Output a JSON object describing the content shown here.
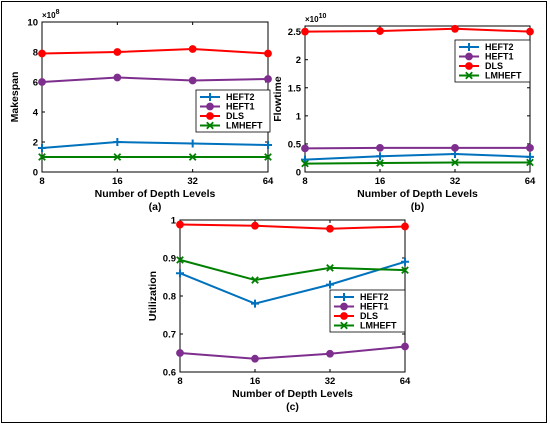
{
  "chart_data": [
    {
      "type": "line",
      "caption": "(a)",
      "xlabel": "Number of Depth Levels",
      "ylabel": "Makespan",
      "y_multiplier": "×10",
      "y_multiplier_exp": "8",
      "categories": [
        "8",
        "16",
        "32",
        "64"
      ],
      "ylim": [
        0,
        10
      ],
      "yticks": [
        0,
        2,
        4,
        6,
        8,
        10
      ],
      "legend_position": "center-right",
      "series": [
        {
          "name": "HEFT2",
          "color": "#0072BD",
          "marker": "plus",
          "values": [
            1.6,
            2.0,
            1.9,
            1.8
          ]
        },
        {
          "name": "HEFT1",
          "color": "#7E2F8E",
          "marker": "circle",
          "values": [
            6.0,
            6.3,
            6.1,
            6.2
          ]
        },
        {
          "name": "DLS",
          "color": "#FF0000",
          "marker": "circle",
          "values": [
            7.9,
            8.0,
            8.2,
            7.9
          ]
        },
        {
          "name": "LMHEFT",
          "color": "#008000",
          "marker": "cross",
          "values": [
            1.0,
            1.0,
            1.0,
            1.0
          ]
        }
      ]
    },
    {
      "type": "line",
      "caption": "(b)",
      "xlabel": "Number of Depth Levels",
      "ylabel": "Flowtime",
      "y_multiplier": "×10",
      "y_multiplier_exp": "10",
      "categories": [
        "8",
        "16",
        "32",
        "64"
      ],
      "ylim": [
        0,
        2.6
      ],
      "yticks": [
        0,
        0.5,
        1,
        1.5,
        2,
        2.5
      ],
      "ytick_labels": [
        "0",
        "0.5",
        "1",
        "1.5",
        "2",
        "2.5"
      ],
      "legend_position": "top-right",
      "series": [
        {
          "name": "HEFT2",
          "color": "#0072BD",
          "marker": "plus",
          "values": [
            0.22,
            0.28,
            0.32,
            0.27
          ]
        },
        {
          "name": "HEFT1",
          "color": "#7E2F8E",
          "marker": "circle",
          "values": [
            0.42,
            0.43,
            0.43,
            0.43
          ]
        },
        {
          "name": "DLS",
          "color": "#FF0000",
          "marker": "circle",
          "values": [
            2.5,
            2.51,
            2.55,
            2.5
          ]
        },
        {
          "name": "LMHEFT",
          "color": "#008000",
          "marker": "cross",
          "values": [
            0.15,
            0.16,
            0.17,
            0.17
          ]
        }
      ]
    },
    {
      "type": "line",
      "caption": "(c)",
      "xlabel": "Number of Depth Levels",
      "ylabel": "Utilization",
      "categories": [
        "8",
        "16",
        "32",
        "64"
      ],
      "ylim": [
        0.6,
        1.0
      ],
      "yticks": [
        0.6,
        0.7,
        0.8,
        0.9,
        1.0
      ],
      "ytick_labels": [
        "0.6",
        "0.7",
        "0.8",
        "0.9",
        "1"
      ],
      "legend_position": "center-right",
      "series": [
        {
          "name": "HEFT2",
          "color": "#0072BD",
          "marker": "plus",
          "values": [
            0.86,
            0.78,
            0.83,
            0.89
          ]
        },
        {
          "name": "HEFT1",
          "color": "#7E2F8E",
          "marker": "circle",
          "values": [
            0.65,
            0.635,
            0.648,
            0.667
          ]
        },
        {
          "name": "DLS",
          "color": "#FF0000",
          "marker": "circle",
          "values": [
            0.988,
            0.985,
            0.977,
            0.983
          ]
        },
        {
          "name": "LMHEFT",
          "color": "#008000",
          "marker": "cross",
          "values": [
            0.895,
            0.842,
            0.874,
            0.868
          ]
        }
      ]
    }
  ]
}
